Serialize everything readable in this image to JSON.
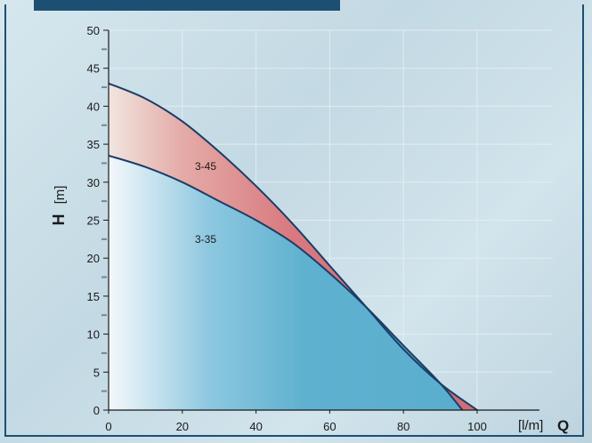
{
  "chart_data": {
    "type": "area",
    "xlabel": "[l/m]",
    "xlabel_symbol": "Q",
    "ylabel": "[m]",
    "ylabel_symbol": "H",
    "xlim": [
      0,
      100
    ],
    "ylim": [
      0,
      50
    ],
    "x_ticks": [
      0,
      20,
      40,
      60,
      80,
      100
    ],
    "y_ticks": [
      0,
      5,
      10,
      15,
      20,
      25,
      30,
      35,
      40,
      45,
      50
    ],
    "grid": true,
    "series": [
      {
        "name": "3-45",
        "color": "#d9797f",
        "x": [
          0,
          10,
          20,
          30,
          40,
          50,
          60,
          70,
          80,
          90,
          100
        ],
        "values": [
          43,
          41,
          38,
          34,
          29.5,
          24.5,
          19,
          13.5,
          8,
          3.5,
          0
        ]
      },
      {
        "name": "3-35",
        "color": "#5fb1d0",
        "x": [
          0,
          10,
          20,
          30,
          40,
          50,
          60,
          70,
          80,
          90,
          96
        ],
        "values": [
          33.5,
          32,
          30,
          27.5,
          25,
          22,
          18,
          13.5,
          8.5,
          3.5,
          0
        ]
      }
    ],
    "annotations": [
      "3-45",
      "3-35"
    ]
  }
}
